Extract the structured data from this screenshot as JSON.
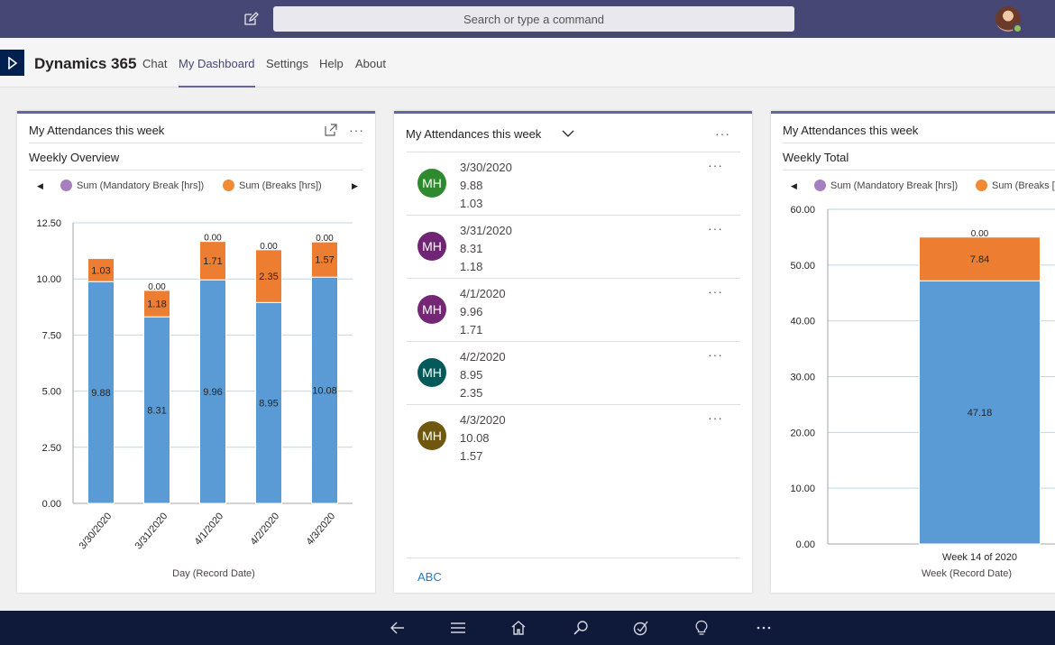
{
  "topbar": {
    "search_placeholder": "Search or type a command"
  },
  "app": {
    "name": "Dynamics 365",
    "tabs": [
      {
        "label": "Chat",
        "active": false
      },
      {
        "label": "My Dashboard",
        "active": true
      },
      {
        "label": "Settings",
        "active": false
      },
      {
        "label": "Help",
        "active": false
      },
      {
        "label": "About",
        "active": false
      }
    ]
  },
  "card1": {
    "title": "My Attendances this week",
    "subtitle": "Weekly Overview",
    "more": "···",
    "chart_data": {
      "type": "bar",
      "stacked": true,
      "categories": [
        "3/30/2020",
        "3/31/2020",
        "4/1/2020",
        "4/2/2020",
        "4/3/2020"
      ],
      "series": [
        {
          "name": "Sum (Mandatory Break [hrs])",
          "color": "#5b9bd5",
          "values": [
            9.88,
            8.31,
            9.96,
            8.95,
            10.08
          ]
        },
        {
          "name": "Sum (Breaks [hrs])",
          "color": "#ed7d31",
          "values": [
            1.03,
            1.18,
            1.71,
            2.35,
            1.57
          ]
        }
      ],
      "top_labels": [
        "",
        "0.00",
        "0.00",
        "0.00",
        "0.00"
      ],
      "yticks": [
        "0.00",
        "2.50",
        "5.00",
        "7.50",
        "10.00",
        "12.50"
      ],
      "ylim": [
        0,
        12.5
      ],
      "xlabel": "Day (Record Date)",
      "legend_colors": [
        "#a67fbf",
        "#f28a33"
      ]
    }
  },
  "card2": {
    "title": "My Attendances this week",
    "more": "···",
    "items": [
      {
        "initials": "MH",
        "color": "#2f8a2f",
        "date": "3/30/2020",
        "v1": "9.88",
        "v2": "1.03"
      },
      {
        "initials": "MH",
        "color": "#6f2573",
        "date": "3/31/2020",
        "v1": "8.31",
        "v2": "1.18"
      },
      {
        "initials": "MH",
        "color": "#742774",
        "date": "4/1/2020",
        "v1": "9.96",
        "v2": "1.71"
      },
      {
        "initials": "MH",
        "color": "#045a5a",
        "date": "4/2/2020",
        "v1": "8.95",
        "v2": "2.35"
      },
      {
        "initials": "MH",
        "color": "#6f5710",
        "date": "4/3/2020",
        "v1": "10.08",
        "v2": "1.57"
      }
    ],
    "footer": "ABC"
  },
  "card3": {
    "title": "My Attendances this week",
    "subtitle": "Weekly Total",
    "chart_data": {
      "type": "bar",
      "stacked": true,
      "categories": [
        "Week 14 of 2020"
      ],
      "series": [
        {
          "name": "Sum (Mandatory Break [hrs])",
          "color": "#5b9bd5",
          "values": [
            47.18
          ]
        },
        {
          "name": "Sum (Breaks [hrs])",
          "color": "#ed7d31",
          "values": [
            7.84
          ]
        }
      ],
      "top_labels": [
        "0.00"
      ],
      "legend_labels": [
        "Sum (Mandatory Break [hrs])",
        "Sum (Breaks ["
      ],
      "yticks": [
        "0.00",
        "10.00",
        "20.00",
        "30.00",
        "40.00",
        "50.00",
        "60.00"
      ],
      "ylim": [
        0,
        60
      ],
      "xlabel": "Week (Record Date)"
    }
  }
}
